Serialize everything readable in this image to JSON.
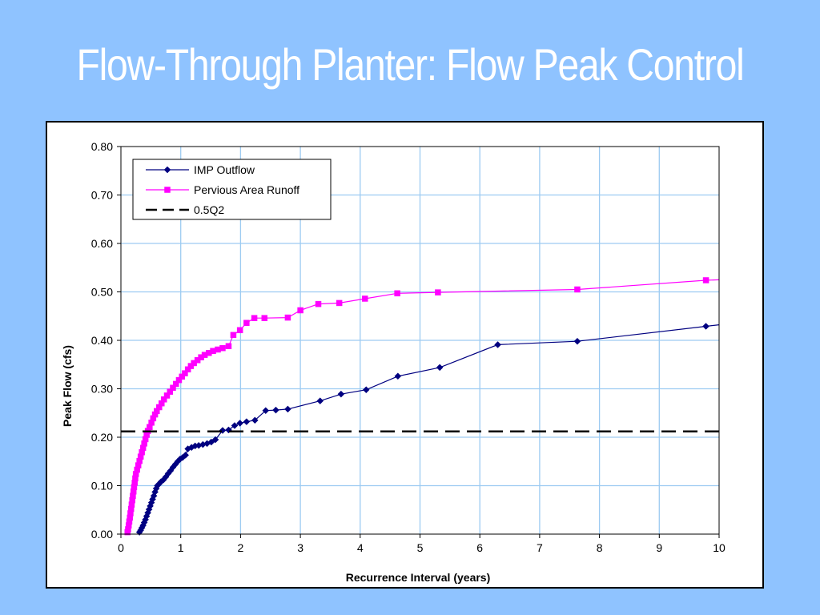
{
  "slide": {
    "title": "Flow-Through Planter: Flow Peak Control"
  },
  "colors": {
    "background": "#8fc3ff",
    "grid": "#9dcbf2",
    "imp": "#000080",
    "pervious": "#ff00ff",
    "threshold": "#000000"
  },
  "chart_data": {
    "type": "line",
    "title": "",
    "xlabel": "Recurrence Interval (years)",
    "ylabel": "Peak Flow (cfs)",
    "xlim": [
      0,
      10
    ],
    "ylim": [
      0,
      0.8
    ],
    "xticks": [
      "0",
      "1",
      "2",
      "3",
      "4",
      "5",
      "6",
      "7",
      "8",
      "9",
      "10"
    ],
    "yticks": [
      "0.00",
      "0.10",
      "0.20",
      "0.30",
      "0.40",
      "0.50",
      "0.60",
      "0.70",
      "0.80"
    ],
    "grid": true,
    "legend_position": "top-left",
    "series": [
      {
        "name": "IMP Outflow",
        "marker": "diamond",
        "color": "#000080",
        "points": [
          [
            0.31,
            0.004
          ],
          [
            0.33,
            0.008
          ],
          [
            0.35,
            0.013
          ],
          [
            0.37,
            0.018
          ],
          [
            0.39,
            0.024
          ],
          [
            0.41,
            0.03
          ],
          [
            0.43,
            0.037
          ],
          [
            0.45,
            0.044
          ],
          [
            0.47,
            0.051
          ],
          [
            0.49,
            0.058
          ],
          [
            0.51,
            0.065
          ],
          [
            0.53,
            0.072
          ],
          [
            0.55,
            0.079
          ],
          [
            0.57,
            0.087
          ],
          [
            0.59,
            0.094
          ],
          [
            0.61,
            0.1
          ],
          [
            0.64,
            0.104
          ],
          [
            0.67,
            0.108
          ],
          [
            0.71,
            0.112
          ],
          [
            0.75,
            0.118
          ],
          [
            0.79,
            0.125
          ],
          [
            0.83,
            0.131
          ],
          [
            0.87,
            0.138
          ],
          [
            0.91,
            0.144
          ],
          [
            0.95,
            0.15
          ],
          [
            0.99,
            0.155
          ],
          [
            1.03,
            0.158
          ],
          [
            1.08,
            0.163
          ],
          [
            1.12,
            0.176
          ],
          [
            1.18,
            0.179
          ],
          [
            1.24,
            0.182
          ],
          [
            1.3,
            0.183
          ],
          [
            1.37,
            0.185
          ],
          [
            1.44,
            0.187
          ],
          [
            1.51,
            0.19
          ],
          [
            1.58,
            0.195
          ],
          [
            1.7,
            0.214
          ],
          [
            1.8,
            0.215
          ],
          [
            1.9,
            0.224
          ],
          [
            1.99,
            0.229
          ],
          [
            2.1,
            0.232
          ],
          [
            2.24,
            0.235
          ],
          [
            2.42,
            0.255
          ],
          [
            2.59,
            0.256
          ],
          [
            2.79,
            0.258
          ],
          [
            3.33,
            0.275
          ],
          [
            3.68,
            0.289
          ],
          [
            4.1,
            0.298
          ],
          [
            4.63,
            0.326
          ],
          [
            5.33,
            0.344
          ],
          [
            6.3,
            0.391
          ],
          [
            7.63,
            0.398
          ],
          [
            9.78,
            0.429
          ],
          [
            10.0,
            0.432
          ]
        ]
      },
      {
        "name": "Pervious Area Runoff",
        "marker": "square",
        "color": "#ff00ff",
        "points": [
          [
            0.11,
            0.004
          ],
          [
            0.12,
            0.01
          ],
          [
            0.13,
            0.018
          ],
          [
            0.14,
            0.026
          ],
          [
            0.15,
            0.034
          ],
          [
            0.16,
            0.043
          ],
          [
            0.17,
            0.052
          ],
          [
            0.18,
            0.061
          ],
          [
            0.19,
            0.07
          ],
          [
            0.2,
            0.079
          ],
          [
            0.21,
            0.088
          ],
          [
            0.22,
            0.097
          ],
          [
            0.23,
            0.106
          ],
          [
            0.24,
            0.115
          ],
          [
            0.25,
            0.124
          ],
          [
            0.27,
            0.133
          ],
          [
            0.29,
            0.142
          ],
          [
            0.31,
            0.151
          ],
          [
            0.33,
            0.16
          ],
          [
            0.35,
            0.169
          ],
          [
            0.37,
            0.178
          ],
          [
            0.39,
            0.187
          ],
          [
            0.41,
            0.196
          ],
          [
            0.43,
            0.205
          ],
          [
            0.45,
            0.213
          ],
          [
            0.48,
            0.221
          ],
          [
            0.51,
            0.23
          ],
          [
            0.54,
            0.239
          ],
          [
            0.57,
            0.247
          ],
          [
            0.6,
            0.254
          ],
          [
            0.64,
            0.262
          ],
          [
            0.68,
            0.27
          ],
          [
            0.72,
            0.278
          ],
          [
            0.77,
            0.286
          ],
          [
            0.82,
            0.294
          ],
          [
            0.87,
            0.302
          ],
          [
            0.92,
            0.31
          ],
          [
            0.97,
            0.318
          ],
          [
            1.02,
            0.325
          ],
          [
            1.07,
            0.332
          ],
          [
            1.12,
            0.34
          ],
          [
            1.17,
            0.347
          ],
          [
            1.22,
            0.353
          ],
          [
            1.28,
            0.359
          ],
          [
            1.34,
            0.365
          ],
          [
            1.4,
            0.37
          ],
          [
            1.47,
            0.374
          ],
          [
            1.54,
            0.378
          ],
          [
            1.62,
            0.381
          ],
          [
            1.7,
            0.384
          ],
          [
            1.8,
            0.388
          ],
          [
            1.88,
            0.411
          ],
          [
            1.99,
            0.421
          ],
          [
            2.1,
            0.436
          ],
          [
            2.23,
            0.446
          ],
          [
            2.4,
            0.446
          ],
          [
            2.79,
            0.447
          ],
          [
            3.0,
            0.462
          ],
          [
            3.3,
            0.475
          ],
          [
            3.65,
            0.477
          ],
          [
            4.08,
            0.486
          ],
          [
            4.62,
            0.497
          ],
          [
            5.3,
            0.499
          ],
          [
            7.63,
            0.505
          ],
          [
            9.78,
            0.524
          ],
          [
            10.0,
            0.525
          ]
        ]
      },
      {
        "name": "0.5Q2",
        "marker": "none",
        "color": "#000000",
        "dashed": true,
        "points": [
          [
            0,
            0.212
          ],
          [
            10,
            0.212
          ]
        ]
      }
    ]
  }
}
